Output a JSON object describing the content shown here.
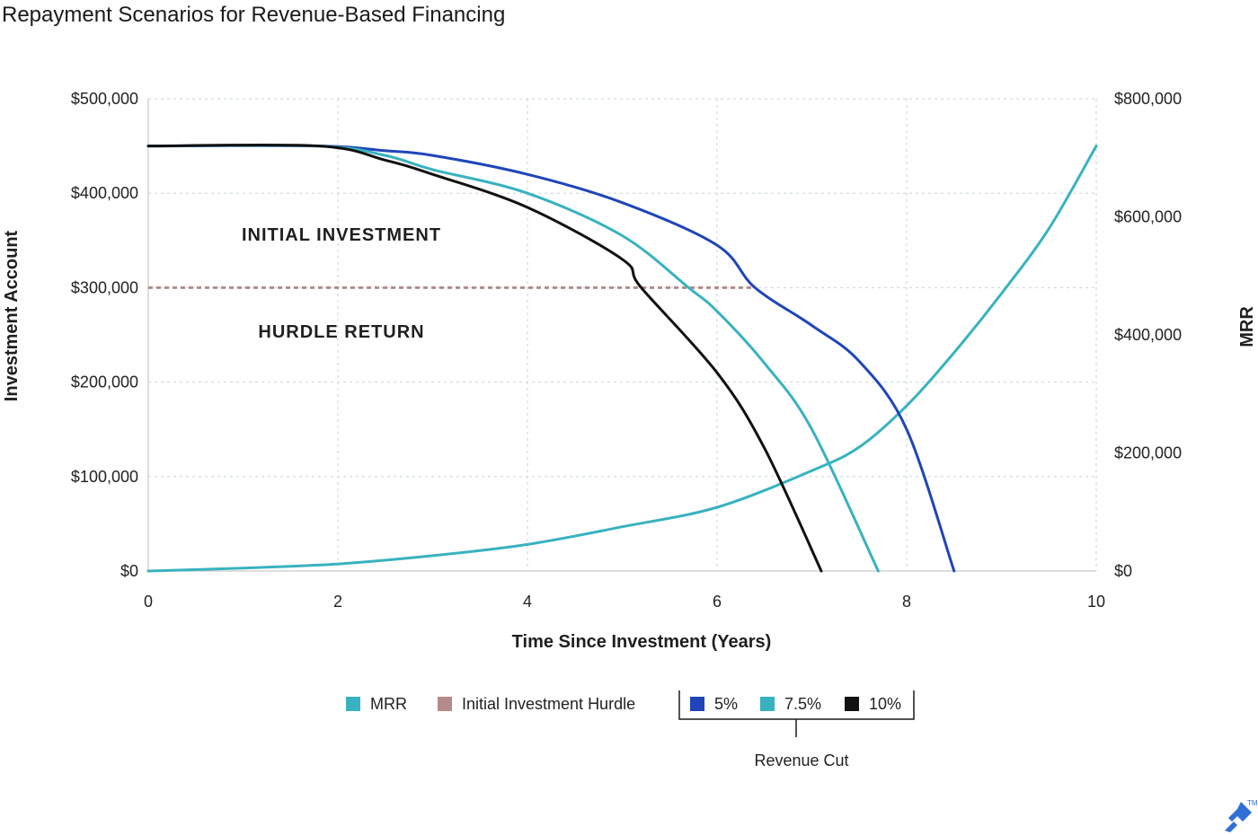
{
  "chart_data": {
    "type": "line",
    "title": "Repayment Scenarios for Revenue-Based Financing",
    "xlabel": "Time Since Investment (Years)",
    "ylabel": "Investment Account",
    "y2label": "MRR",
    "xlim": [
      0,
      10
    ],
    "ylim": [
      0,
      500000
    ],
    "y2lim": [
      0,
      800000
    ],
    "x_ticks": [
      "0",
      "2",
      "4",
      "6",
      "8",
      "10"
    ],
    "y_ticks": [
      "$0",
      "$100,000",
      "$200,000",
      "$300,000",
      "$400,000",
      "$500,000"
    ],
    "y2_ticks": [
      "$0",
      "$200,000",
      "$400,000",
      "$600,000",
      "$800,000"
    ],
    "grid": true,
    "legend_position": "bottom",
    "annotations": [
      {
        "text": "INITIAL INVESTMENT",
        "x": 2.0,
        "y": 350000
      },
      {
        "text": "HURDLE RETURN",
        "x": 2.0,
        "y": 247000
      }
    ],
    "hurdle": {
      "name": "Initial Investment Hurdle",
      "value": 300000,
      "x_range": [
        0,
        6.4
      ],
      "color": "#b48a8a"
    },
    "legend_group_label": "Revenue Cut",
    "series": [
      {
        "name": "MRR",
        "axis": "right",
        "color": "#38b2c0",
        "points": [
          [
            0,
            0
          ],
          [
            1,
            5000
          ],
          [
            2,
            12000
          ],
          [
            3,
            26000
          ],
          [
            4,
            45000
          ],
          [
            5,
            75000
          ],
          [
            6,
            108000
          ],
          [
            7,
            170000
          ],
          [
            7.5,
            210000
          ],
          [
            8,
            280000
          ],
          [
            8.5,
            370000
          ],
          [
            9,
            470000
          ],
          [
            9.5,
            580000
          ],
          [
            10,
            720000
          ]
        ]
      },
      {
        "name": "5%",
        "axis": "left",
        "color": "#1f45b8",
        "points": [
          [
            0,
            450000
          ],
          [
            1.8,
            450000
          ],
          [
            2.5,
            445000
          ],
          [
            3,
            440000
          ],
          [
            4,
            420000
          ],
          [
            5,
            390000
          ],
          [
            6,
            345000
          ],
          [
            6.4,
            300000
          ],
          [
            7,
            260000
          ],
          [
            7.5,
            222000
          ],
          [
            8,
            150000
          ],
          [
            8.5,
            0
          ]
        ]
      },
      {
        "name": "7.5%",
        "axis": "left",
        "color": "#38b2c0",
        "points": [
          [
            0,
            450000
          ],
          [
            1.8,
            450000
          ],
          [
            2.5,
            440000
          ],
          [
            3,
            425000
          ],
          [
            4,
            400000
          ],
          [
            5,
            355000
          ],
          [
            5.7,
            300000
          ],
          [
            6,
            275000
          ],
          [
            6.5,
            220000
          ],
          [
            7,
            150000
          ],
          [
            7.7,
            0
          ]
        ]
      },
      {
        "name": "10%",
        "axis": "left",
        "color": "#111111",
        "points": [
          [
            0,
            450000
          ],
          [
            1.8,
            450000
          ],
          [
            2.5,
            435000
          ],
          [
            3,
            420000
          ],
          [
            4,
            385000
          ],
          [
            5,
            330000
          ],
          [
            5.2,
            300000
          ],
          [
            6,
            210000
          ],
          [
            6.5,
            130000
          ],
          [
            7.1,
            0
          ]
        ]
      }
    ]
  }
}
